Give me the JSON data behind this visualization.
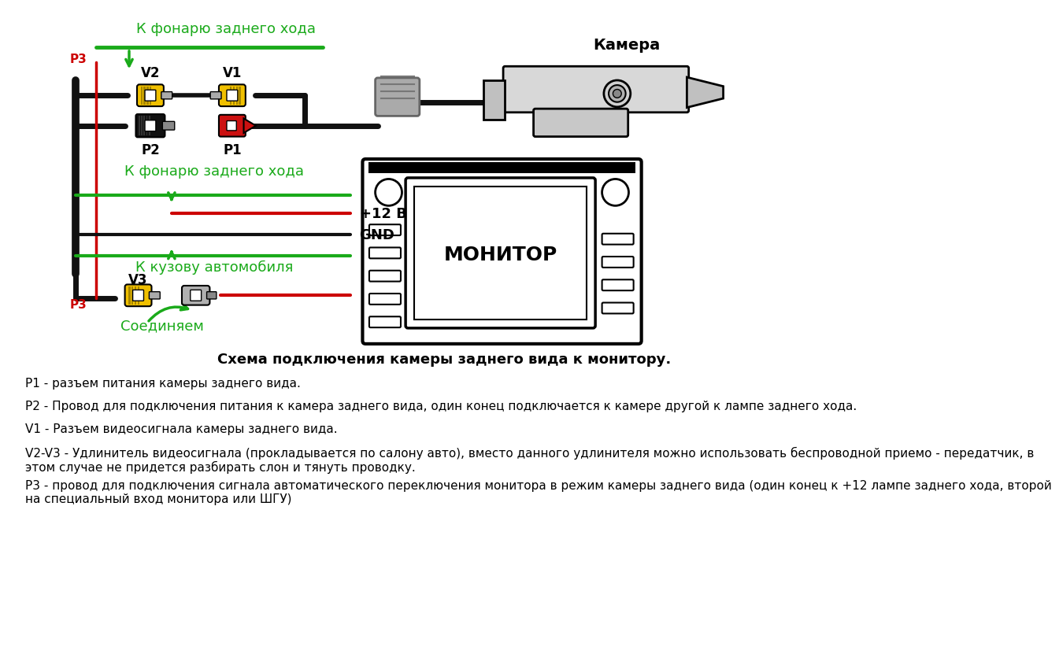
{
  "bg_color": "#ffffff",
  "title": "Схема подключения камеры заднего вида к монитору.",
  "label_camera": "Камера",
  "label_monitor": "МОНИТОР",
  "label_v1": "V1",
  "label_v2": "V2",
  "label_v3": "V3",
  "label_p1": "P1",
  "label_p2": "P2",
  "label_p3_top": "P3",
  "label_p3_bot": "P3",
  "label_fonary_top": "К фонарю заднего хода",
  "label_fonary_mid": "К фонарю заднего хода",
  "label_kuzov": "К кузову автомобиля",
  "label_soedin": "Соединяем",
  "label_12v": "+12 В",
  "label_gnd": "GND",
  "green_color": "#1aaa1a",
  "red_color": "#cc0000",
  "black_color": "#111111",
  "yellow_color": "#f0c000",
  "gray_color": "#999999",
  "text_descriptions": [
    "Р1 - разъем питания камеры заднего вида.",
    "Р2 - Провод для подключения питания к камера заднего вида, один конец подключается к камере другой к лампе заднего хода.",
    "V1 - Разъем видеосигнала камеры заднего вида.",
    "V2-V3 - Удлинитель видеосигнала (прокладывается по салону авто), вместо данного удлинителя можно использовать беспроводной приемо - передатчик, в\nэтом случае не придется разбирать слон и тянуть проводку.",
    "Р3 - провод для подключения сигнала автоматического переключения монитора в режим камеры заднего вида (один конец к +12 лампе заднего хода, второй\nна специальный вход монитора или ШГУ)"
  ]
}
